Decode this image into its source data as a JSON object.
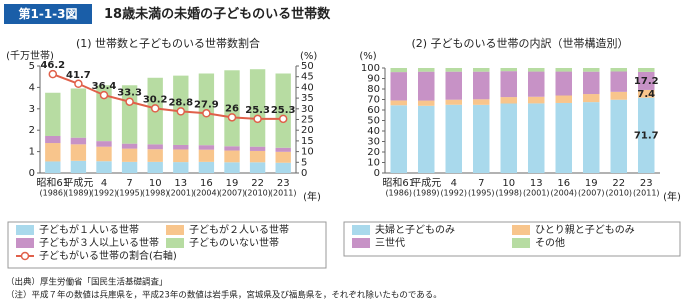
{
  "header": {
    "figure_id": "第1-1-3図",
    "title": "18歳未満の未婚の子どものいる世帯数"
  },
  "chart_data": [
    {
      "type": "bar",
      "stacked": true,
      "title": "(1) 世帯数と子どものいる世帯数割合",
      "ylabel": "(千万世帯)",
      "y2label": "(%)",
      "xlabel": "(年)",
      "categories": [
        "昭和61",
        "平成元",
        "4",
        "7",
        "10",
        "13",
        "16",
        "19",
        "22",
        "23"
      ],
      "category_years": [
        "(1986)",
        "(1989)",
        "(1992)",
        "(1995)",
        "(1998)",
        "(2001)",
        "(2004)",
        "(2007)",
        "(2010)",
        "(2011)"
      ],
      "ylim": [
        0,
        5
      ],
      "yticks": [
        0,
        1,
        2,
        3,
        4,
        5
      ],
      "y2lim": [
        0,
        50
      ],
      "y2ticks": [
        0,
        5,
        10,
        15,
        20,
        25,
        30,
        35,
        40,
        45,
        50
      ],
      "legend_columns": 2,
      "series": [
        {
          "name": "子どもが１人いる世帯",
          "color": "#a9d9ec",
          "values": [
            0.54,
            0.57,
            0.55,
            0.52,
            0.52,
            0.51,
            0.52,
            0.5,
            0.5,
            0.48
          ]
        },
        {
          "name": "子どもが２人いる世帯",
          "color": "#f8c58c",
          "values": [
            0.86,
            0.77,
            0.68,
            0.62,
            0.59,
            0.59,
            0.57,
            0.55,
            0.53,
            0.51
          ]
        },
        {
          "name": "子どもが３人以上いる世帯",
          "color": "#c792c6",
          "values": [
            0.33,
            0.31,
            0.26,
            0.23,
            0.23,
            0.21,
            0.21,
            0.2,
            0.2,
            0.19
          ]
        },
        {
          "name": "子どものいない世帯",
          "color": "#b7dca2",
          "values": [
            2.02,
            2.3,
            2.61,
            2.73,
            3.11,
            3.24,
            3.35,
            3.55,
            3.62,
            3.47
          ]
        },
        {
          "name": "子どもがいる世帯の割合(右軸)",
          "color": "#e0604a",
          "type": "line",
          "axis": "y2",
          "label": true,
          "values": [
            46.2,
            41.7,
            36.4,
            33.3,
            30.2,
            28.8,
            27.9,
            26.0,
            25.3,
            25.3
          ]
        }
      ]
    },
    {
      "type": "bar",
      "stacked": true,
      "title": "(2) 子どものいる世帯の内訳（世帯構造別）",
      "ylabel": "(%)",
      "xlabel": "(年)",
      "categories": [
        "昭和61",
        "平成元",
        "4",
        "7",
        "10",
        "13",
        "16",
        "19",
        "22",
        "23"
      ],
      "category_years": [
        "(1986)",
        "(1989)",
        "(1992)",
        "(1995)",
        "(1998)",
        "(2001)",
        "(2004)",
        "(2007)",
        "(2010)",
        "(2011)"
      ],
      "ylim": [
        0,
        100
      ],
      "yticks": [
        0,
        10,
        20,
        30,
        40,
        50,
        60,
        70,
        80,
        90,
        100
      ],
      "legend_columns": 2,
      "data_labels_at": "last",
      "series": [
        {
          "name": "夫婦と子どものみ",
          "color": "#a9d9ec",
          "label": true,
          "values": [
            64.5,
            64.0,
            65.0,
            64.9,
            66.2,
            66.3,
            66.7,
            67.5,
            69.8,
            71.7
          ]
        },
        {
          "name": "ひとり親と子どものみ",
          "color": "#f8c58c",
          "label": true,
          "values": [
            4.6,
            5.0,
            4.8,
            5.3,
            6.1,
            6.3,
            7.1,
            7.7,
            7.5,
            7.4
          ]
        },
        {
          "name": "三世代",
          "color": "#c792c6",
          "label": true,
          "values": [
            27.0,
            27.5,
            26.7,
            26.3,
            24.7,
            24.0,
            22.8,
            21.3,
            19.4,
            17.2
          ]
        },
        {
          "name": "その他",
          "color": "#b7dca2",
          "values": [
            3.9,
            3.5,
            3.5,
            3.5,
            3.0,
            3.4,
            3.4,
            3.5,
            3.3,
            3.7
          ]
        }
      ]
    }
  ],
  "notes": [
    "（出典）厚生労働省「国民生活基礎調査」",
    "（注）平成７年の数値は兵庫県を，平成23年の数値は岩手県，宮城県及び福島県を，それぞれ除いたものである。"
  ]
}
